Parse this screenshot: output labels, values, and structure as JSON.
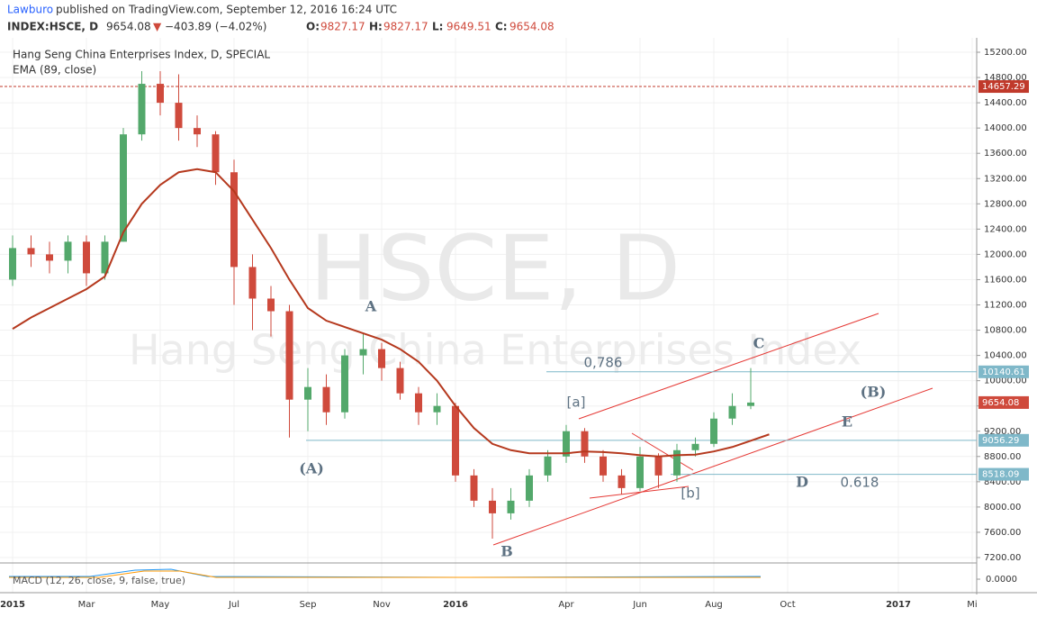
{
  "header": {
    "author": "Lawburo",
    "published": "published on TradingView.com, September 12, 2016 16:24 UTC",
    "symbol": "INDEX:HSCE, D",
    "last": 9654.08,
    "change": "−403.89 (−4.02%)",
    "ohlc": [
      {
        "label": "O:",
        "value": 9827.17
      },
      {
        "label": "H:",
        "value": 9827.17
      },
      {
        "label": "L:",
        "value": 9649.51
      },
      {
        "label": "C:",
        "value": 9654.08
      }
    ]
  },
  "chart_data": {
    "type": "candlestick",
    "title": "Hang Seng China Enterprises Index, D, SPECIAL",
    "watermark": "HSCE, D",
    "watermark_subtitle": "Hang Seng China Enterprises Index",
    "categories": [
      "2015",
      null,
      null,
      null,
      "Mar",
      null,
      null,
      null,
      "May",
      null,
      null,
      null,
      "Jul",
      null,
      null,
      null,
      "Sep",
      null,
      null,
      null,
      "Nov",
      null,
      null,
      null,
      "2016",
      null,
      null,
      null,
      null,
      null,
      "Apr",
      null,
      null,
      null,
      "Jun",
      null,
      null,
      null,
      "Aug",
      null,
      null,
      null,
      "Oct",
      null,
      null,
      null,
      null,
      null,
      "2017",
      null,
      null,
      null,
      "Mi",
      null
    ],
    "open": [
      11600,
      12100,
      12000,
      11900,
      12200,
      11700,
      12200,
      13900,
      14700,
      14400,
      14000,
      13900,
      13300,
      11800,
      11300,
      11100,
      9700,
      9900,
      9500,
      10400,
      10500,
      10200,
      9800,
      9500,
      9600,
      8500,
      8100,
      7900,
      8100,
      8500,
      8800,
      9200,
      8800,
      8500,
      8300,
      8800,
      8500,
      8900,
      9000,
      9400,
      9600,
      null,
      null,
      null,
      null,
      null,
      null,
      null,
      null,
      null,
      null,
      null,
      null,
      null
    ],
    "high": [
      12300,
      12300,
      12200,
      12300,
      12300,
      12300,
      14000,
      14900,
      14900,
      14850,
      14200,
      13950,
      13500,
      12000,
      11500,
      11200,
      10200,
      10100,
      10500,
      10750,
      10600,
      10300,
      9900,
      9800,
      9650,
      8600,
      8300,
      8300,
      8600,
      8900,
      9300,
      9250,
      8900,
      8600,
      8950,
      8850,
      9000,
      9100,
      9500,
      9800,
      10200,
      null,
      null,
      null,
      null,
      null,
      null,
      null,
      null,
      null,
      null,
      null,
      null,
      null
    ],
    "low": [
      11500,
      11800,
      11700,
      11700,
      11500,
      11600,
      12200,
      13800,
      14200,
      13800,
      13700,
      13100,
      11200,
      10800,
      10700,
      9100,
      9200,
      9300,
      9400,
      10100,
      10000,
      9700,
      9300,
      9300,
      8400,
      8000,
      7500,
      7800,
      8000,
      8400,
      8700,
      8700,
      8400,
      8200,
      8250,
      8300,
      8400,
      8800,
      8950,
      9300,
      9550,
      null,
      null,
      null,
      null,
      null,
      null,
      null,
      null,
      null,
      null,
      null,
      null,
      null
    ],
    "close": [
      12100,
      12000,
      11900,
      12200,
      11700,
      12200,
      13900,
      14700,
      14400,
      14000,
      13900,
      13300,
      11800,
      11300,
      11100,
      9700,
      9900,
      9500,
      10400,
      10500,
      10200,
      9800,
      9500,
      9600,
      8500,
      8100,
      7900,
      8100,
      8500,
      8800,
      9200,
      8800,
      8500,
      8300,
      8800,
      8500,
      8900,
      9000,
      9400,
      9600,
      9654.08,
      null,
      null,
      null,
      null,
      null,
      null,
      null,
      null,
      null,
      null,
      null,
      null,
      null
    ],
    "up_color": "#53a86b",
    "down_color": "#cf4a3c",
    "ema": {
      "name": "EMA (89, close)",
      "color": "#b5391e",
      "values": [
        10820,
        11000,
        11150,
        11300,
        11450,
        11650,
        12350,
        12800,
        13100,
        13300,
        13350,
        13300,
        13000,
        12550,
        12100,
        11600,
        11150,
        10950,
        10850,
        10750,
        10650,
        10500,
        10300,
        10000,
        9600,
        9250,
        9000,
        8900,
        8850,
        8850,
        8850,
        8880,
        8870,
        8850,
        8820,
        8800,
        8820,
        8830,
        8880,
        8950,
        9050,
        9150,
        null,
        null,
        null,
        null,
        null,
        null,
        null,
        null,
        null,
        null,
        null,
        null
      ]
    },
    "levels": [
      {
        "value": 14657.29,
        "color": "#c0392b",
        "dashed": true
      },
      {
        "value": 10140.61,
        "color": "#7fb8c9",
        "dashed": false
      },
      {
        "value": 9654.08,
        "color": "#cf4a3c",
        "dashed": false
      },
      {
        "value": 9056.29,
        "color": "#7fb8c9",
        "dashed": false
      },
      {
        "value": 8518.09,
        "color": "#7fb8c9",
        "dashed": false
      }
    ],
    "annotations": [
      "A",
      "(A)",
      "B",
      "C",
      "[a]",
      "[b]",
      "D",
      "E",
      "(B)",
      "0,786",
      "0.618"
    ],
    "ylim": [
      7200,
      15200
    ],
    "yticks": [
      {
        "value": 7200,
        "label": "7200.00"
      },
      {
        "value": 7600,
        "label": "7600.00"
      },
      {
        "value": 8000,
        "label": "8000.00"
      },
      {
        "value": 8400,
        "label": "8400.00"
      },
      {
        "value": 8800,
        "label": "8800.00"
      },
      {
        "value": 9200,
        "label": "9200.00"
      },
      {
        "value": 9600,
        "label": "9600.00"
      },
      {
        "value": 10000,
        "label": "10000.00"
      },
      {
        "value": 10400,
        "label": "10400.00"
      },
      {
        "value": 10800,
        "label": "10800.00"
      },
      {
        "value": 11200,
        "label": "11200.00"
      },
      {
        "value": 11600,
        "label": "11600.00"
      },
      {
        "value": 12000,
        "label": "12000.00"
      },
      {
        "value": 12400,
        "label": "12400.00"
      },
      {
        "value": 12800,
        "label": "12800.00"
      },
      {
        "value": 13200,
        "label": "13200.00"
      },
      {
        "value": 13600,
        "label": "13600.00"
      },
      {
        "value": 14000,
        "label": "14000.00"
      },
      {
        "value": 14400,
        "label": "14400.00"
      },
      {
        "value": 14800,
        "label": "14800.00"
      },
      {
        "value": 15200,
        "label": "15200.00"
      }
    ],
    "grid": true,
    "macd": {
      "name": "MACD (12, 26, close, 9, false, true)",
      "yticks": [
        {
          "value": 0,
          "label": "0.0000"
        }
      ]
    }
  }
}
